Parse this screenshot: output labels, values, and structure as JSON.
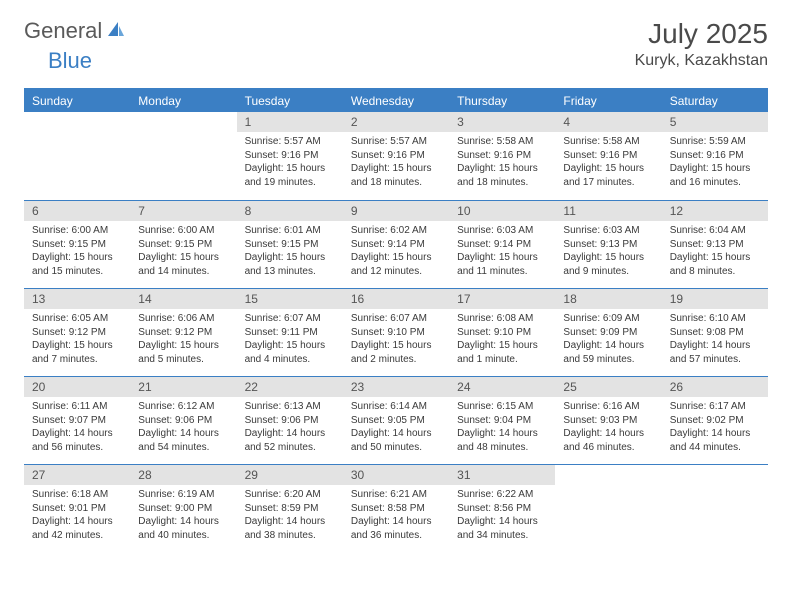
{
  "brand": {
    "word1": "General",
    "word2": "Blue"
  },
  "colors": {
    "accent": "#3b7fc4",
    "header_bg": "#3b7fc4",
    "daynum_bg": "#e3e3e3",
    "text": "#333333",
    "border": "#3b7fc4"
  },
  "title": "July 2025",
  "location": "Kuryk, Kazakhstan",
  "weekdays": [
    "Sunday",
    "Monday",
    "Tuesday",
    "Wednesday",
    "Thursday",
    "Friday",
    "Saturday"
  ],
  "layout": {
    "columns": 7,
    "rows": 5,
    "header_font_size": 12,
    "body_font_size": 10,
    "title_font_size": 28,
    "location_font_size": 16
  },
  "weeks": [
    [
      {
        "empty": true
      },
      {
        "empty": true
      },
      {
        "day": "1",
        "sunrise": "Sunrise: 5:57 AM",
        "sunset": "Sunset: 9:16 PM",
        "daylight": "Daylight: 15 hours and 19 minutes."
      },
      {
        "day": "2",
        "sunrise": "Sunrise: 5:57 AM",
        "sunset": "Sunset: 9:16 PM",
        "daylight": "Daylight: 15 hours and 18 minutes."
      },
      {
        "day": "3",
        "sunrise": "Sunrise: 5:58 AM",
        "sunset": "Sunset: 9:16 PM",
        "daylight": "Daylight: 15 hours and 18 minutes."
      },
      {
        "day": "4",
        "sunrise": "Sunrise: 5:58 AM",
        "sunset": "Sunset: 9:16 PM",
        "daylight": "Daylight: 15 hours and 17 minutes."
      },
      {
        "day": "5",
        "sunrise": "Sunrise: 5:59 AM",
        "sunset": "Sunset: 9:16 PM",
        "daylight": "Daylight: 15 hours and 16 minutes."
      }
    ],
    [
      {
        "day": "6",
        "sunrise": "Sunrise: 6:00 AM",
        "sunset": "Sunset: 9:15 PM",
        "daylight": "Daylight: 15 hours and 15 minutes."
      },
      {
        "day": "7",
        "sunrise": "Sunrise: 6:00 AM",
        "sunset": "Sunset: 9:15 PM",
        "daylight": "Daylight: 15 hours and 14 minutes."
      },
      {
        "day": "8",
        "sunrise": "Sunrise: 6:01 AM",
        "sunset": "Sunset: 9:15 PM",
        "daylight": "Daylight: 15 hours and 13 minutes."
      },
      {
        "day": "9",
        "sunrise": "Sunrise: 6:02 AM",
        "sunset": "Sunset: 9:14 PM",
        "daylight": "Daylight: 15 hours and 12 minutes."
      },
      {
        "day": "10",
        "sunrise": "Sunrise: 6:03 AM",
        "sunset": "Sunset: 9:14 PM",
        "daylight": "Daylight: 15 hours and 11 minutes."
      },
      {
        "day": "11",
        "sunrise": "Sunrise: 6:03 AM",
        "sunset": "Sunset: 9:13 PM",
        "daylight": "Daylight: 15 hours and 9 minutes."
      },
      {
        "day": "12",
        "sunrise": "Sunrise: 6:04 AM",
        "sunset": "Sunset: 9:13 PM",
        "daylight": "Daylight: 15 hours and 8 minutes."
      }
    ],
    [
      {
        "day": "13",
        "sunrise": "Sunrise: 6:05 AM",
        "sunset": "Sunset: 9:12 PM",
        "daylight": "Daylight: 15 hours and 7 minutes."
      },
      {
        "day": "14",
        "sunrise": "Sunrise: 6:06 AM",
        "sunset": "Sunset: 9:12 PM",
        "daylight": "Daylight: 15 hours and 5 minutes."
      },
      {
        "day": "15",
        "sunrise": "Sunrise: 6:07 AM",
        "sunset": "Sunset: 9:11 PM",
        "daylight": "Daylight: 15 hours and 4 minutes."
      },
      {
        "day": "16",
        "sunrise": "Sunrise: 6:07 AM",
        "sunset": "Sunset: 9:10 PM",
        "daylight": "Daylight: 15 hours and 2 minutes."
      },
      {
        "day": "17",
        "sunrise": "Sunrise: 6:08 AM",
        "sunset": "Sunset: 9:10 PM",
        "daylight": "Daylight: 15 hours and 1 minute."
      },
      {
        "day": "18",
        "sunrise": "Sunrise: 6:09 AM",
        "sunset": "Sunset: 9:09 PM",
        "daylight": "Daylight: 14 hours and 59 minutes."
      },
      {
        "day": "19",
        "sunrise": "Sunrise: 6:10 AM",
        "sunset": "Sunset: 9:08 PM",
        "daylight": "Daylight: 14 hours and 57 minutes."
      }
    ],
    [
      {
        "day": "20",
        "sunrise": "Sunrise: 6:11 AM",
        "sunset": "Sunset: 9:07 PM",
        "daylight": "Daylight: 14 hours and 56 minutes."
      },
      {
        "day": "21",
        "sunrise": "Sunrise: 6:12 AM",
        "sunset": "Sunset: 9:06 PM",
        "daylight": "Daylight: 14 hours and 54 minutes."
      },
      {
        "day": "22",
        "sunrise": "Sunrise: 6:13 AM",
        "sunset": "Sunset: 9:06 PM",
        "daylight": "Daylight: 14 hours and 52 minutes."
      },
      {
        "day": "23",
        "sunrise": "Sunrise: 6:14 AM",
        "sunset": "Sunset: 9:05 PM",
        "daylight": "Daylight: 14 hours and 50 minutes."
      },
      {
        "day": "24",
        "sunrise": "Sunrise: 6:15 AM",
        "sunset": "Sunset: 9:04 PM",
        "daylight": "Daylight: 14 hours and 48 minutes."
      },
      {
        "day": "25",
        "sunrise": "Sunrise: 6:16 AM",
        "sunset": "Sunset: 9:03 PM",
        "daylight": "Daylight: 14 hours and 46 minutes."
      },
      {
        "day": "26",
        "sunrise": "Sunrise: 6:17 AM",
        "sunset": "Sunset: 9:02 PM",
        "daylight": "Daylight: 14 hours and 44 minutes."
      }
    ],
    [
      {
        "day": "27",
        "sunrise": "Sunrise: 6:18 AM",
        "sunset": "Sunset: 9:01 PM",
        "daylight": "Daylight: 14 hours and 42 minutes."
      },
      {
        "day": "28",
        "sunrise": "Sunrise: 6:19 AM",
        "sunset": "Sunset: 9:00 PM",
        "daylight": "Daylight: 14 hours and 40 minutes."
      },
      {
        "day": "29",
        "sunrise": "Sunrise: 6:20 AM",
        "sunset": "Sunset: 8:59 PM",
        "daylight": "Daylight: 14 hours and 38 minutes."
      },
      {
        "day": "30",
        "sunrise": "Sunrise: 6:21 AM",
        "sunset": "Sunset: 8:58 PM",
        "daylight": "Daylight: 14 hours and 36 minutes."
      },
      {
        "day": "31",
        "sunrise": "Sunrise: 6:22 AM",
        "sunset": "Sunset: 8:56 PM",
        "daylight": "Daylight: 14 hours and 34 minutes."
      },
      {
        "empty": true
      },
      {
        "empty": true
      }
    ]
  ]
}
